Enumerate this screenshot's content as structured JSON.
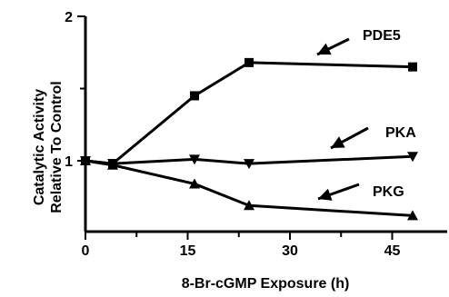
{
  "chart_data": {
    "type": "line",
    "xlabel": "8-Br-cGMP Exposure (h)",
    "ylabel": [
      "Catalytic Activity",
      "Relative To Control"
    ],
    "xlim": [
      0,
      52
    ],
    "ylim": [
      0.5,
      2
    ],
    "xticks": [
      0,
      15,
      30,
      45
    ],
    "yticks": [
      1,
      2
    ],
    "grid": false,
    "legend": "inline labels with arrows",
    "series": [
      {
        "name": "PDE5",
        "marker": "square",
        "x": [
          0,
          4,
          16,
          24,
          48
        ],
        "y": [
          1.0,
          0.98,
          1.45,
          1.68,
          1.65
        ]
      },
      {
        "name": "PKA",
        "marker": "triangle-down",
        "x": [
          0,
          4,
          16,
          24,
          48
        ],
        "y": [
          1.0,
          0.98,
          1.01,
          0.98,
          1.03
        ]
      },
      {
        "name": "PKG",
        "marker": "triangle-up",
        "x": [
          0,
          4,
          16,
          24,
          48
        ],
        "y": [
          1.0,
          0.97,
          0.84,
          0.69,
          0.62
        ]
      }
    ]
  },
  "colors": {
    "line": "#000000",
    "background": "#ffffff"
  }
}
